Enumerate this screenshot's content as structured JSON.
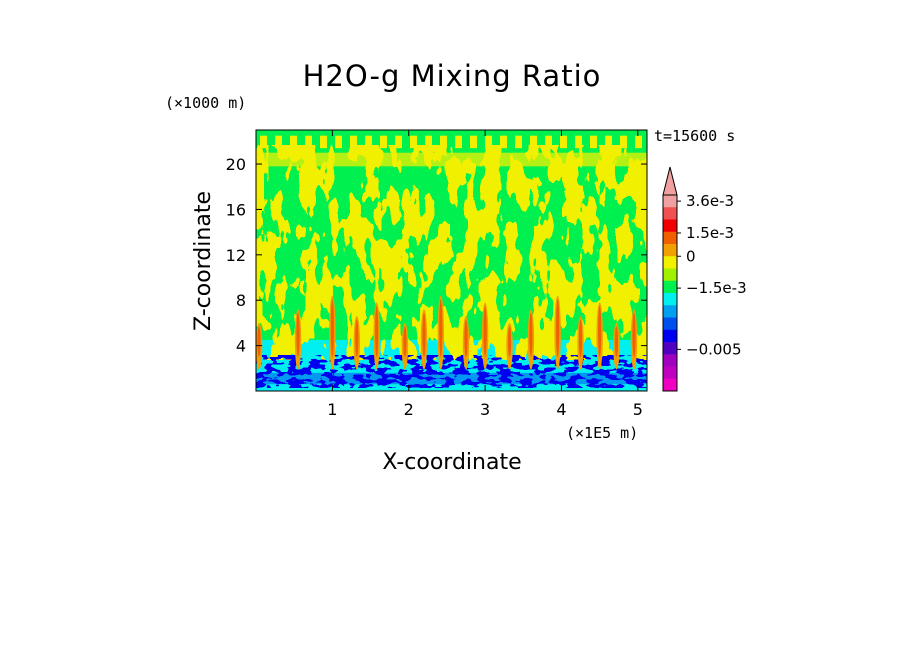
{
  "chart_data": {
    "type": "heatmap",
    "title": "H2O-g Mixing Ratio",
    "time_label": "t=15600 s",
    "xlabel": "X-coordinate",
    "ylabel": "Z-coordinate",
    "x_unit": "(×1E5 m)",
    "y_unit": "(×1000 m)",
    "xlim": [
      0,
      5.12
    ],
    "ylim": [
      0,
      23
    ],
    "x_ticks": [
      1,
      2,
      3,
      4,
      5
    ],
    "y_ticks": [
      4,
      8,
      12,
      16,
      20
    ],
    "grid": false,
    "colorbar": {
      "labels": [
        {
          "text": "3.6e-3",
          "value": 0.0036
        },
        {
          "text": "1.5e-3",
          "value": 0.0015
        },
        {
          "text": "0",
          "value": 0
        },
        {
          "text": "−1.5e-3",
          "value": -0.0015
        },
        {
          "text": "−0.005",
          "value": -0.005
        }
      ],
      "colors_top_to_bottom": [
        "#f0a0a0",
        "#f05050",
        "#f00000",
        "#f06000",
        "#f0a000",
        "#f0f000",
        "#a0f000",
        "#00f050",
        "#00f0f0",
        "#00a0f0",
        "#0050f0",
        "#0000f0",
        "#5000c0",
        "#a000c0",
        "#c000c0",
        "#f000c0"
      ]
    },
    "layers": [
      {
        "band": "near-surface",
        "z_range": [
          0,
          2
        ],
        "level": "about -1.5e-3 (dark blue)"
      },
      {
        "band": "lower",
        "z_range": [
          2,
          4.5
        ],
        "level": "below 0 (cyan)"
      },
      {
        "band": "middle-upper",
        "z_range": [
          4.5,
          21
        ],
        "level": "about 0 (green / yellow)"
      },
      {
        "band": "top",
        "z_range": [
          21,
          23
        ],
        "level": "about 0 (green)"
      },
      {
        "band": "plumes",
        "z_range": [
          2,
          8
        ],
        "level": "up to 1.5e-3 (orange)"
      }
    ]
  }
}
